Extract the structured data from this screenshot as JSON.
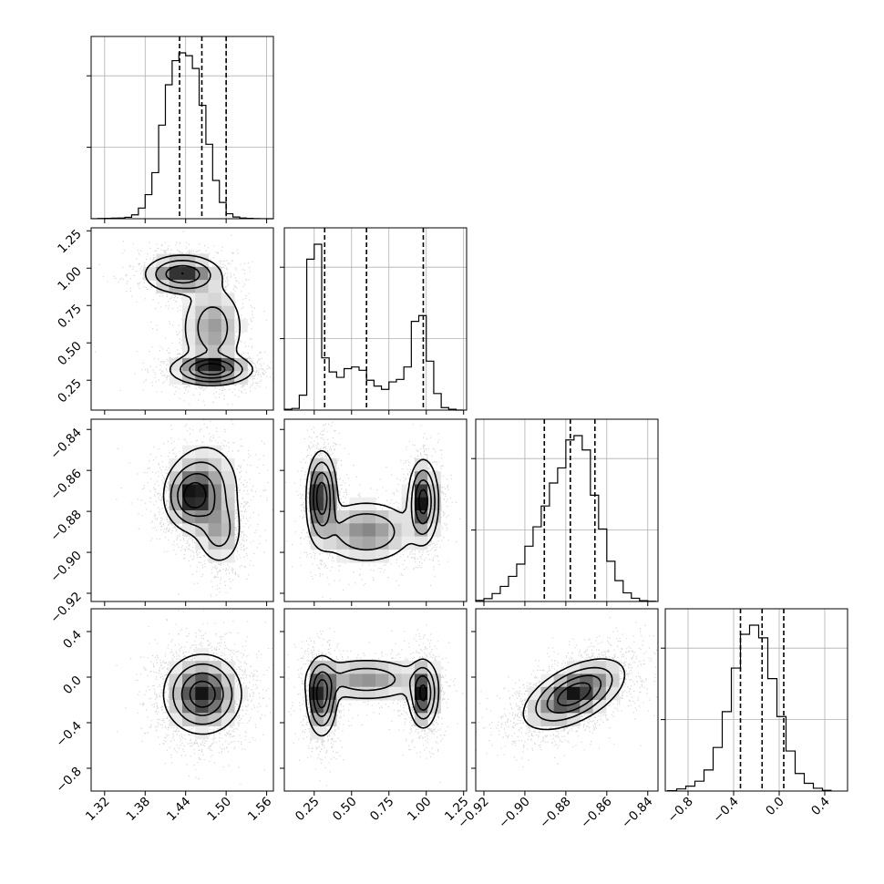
{
  "chart_data": {
    "type": "corner",
    "grid": true,
    "quantile_lines": "dashed",
    "parameters": [
      {
        "range": [
          1.3,
          1.57
        ],
        "ticks": [
          "1.32",
          "1.38",
          "1.44",
          "1.50",
          "1.56"
        ],
        "tick_values": [
          1.32,
          1.38,
          1.44,
          1.5,
          1.56
        ],
        "quantiles": [
          1.431,
          1.464,
          1.5
        ],
        "hist_x": [
          1.3,
          1.31,
          1.32,
          1.33,
          1.34,
          1.35,
          1.36,
          1.37,
          1.38,
          1.39,
          1.4,
          1.41,
          1.42,
          1.43,
          1.44,
          1.45,
          1.46,
          1.47,
          1.48,
          1.49,
          1.5,
          1.51,
          1.52,
          1.53,
          1.54,
          1.55,
          1.56,
          1.57
        ],
        "hist_counts": [
          1,
          3,
          5,
          8,
          10,
          20,
          55,
          150,
          340,
          650,
          1320,
          1890,
          2230,
          2340,
          2300,
          2120,
          1600,
          1050,
          540,
          230,
          70,
          24,
          10,
          5,
          2,
          1,
          0
        ]
      },
      {
        "range": [
          0.05,
          1.27
        ],
        "ticks": [
          "0.25",
          "0.50",
          "0.75",
          "1.00",
          "1.25"
        ],
        "tick_values": [
          0.25,
          0.5,
          0.75,
          1.0,
          1.25
        ],
        "quantiles": [
          0.32,
          0.6,
          0.98
        ],
        "hist_x": [
          0.05,
          0.1,
          0.15,
          0.2,
          0.25,
          0.3,
          0.35,
          0.4,
          0.45,
          0.5,
          0.55,
          0.6,
          0.65,
          0.7,
          0.75,
          0.8,
          0.85,
          0.9,
          0.95,
          1.0,
          1.05,
          1.1,
          1.15,
          1.2,
          1.25
        ],
        "hist_counts": [
          10,
          20,
          180,
          1820,
          2000,
          630,
          460,
          395,
          500,
          520,
          480,
          360,
          290,
          250,
          340,
          370,
          520,
          1070,
          1140,
          590,
          200,
          30,
          10,
          0
        ]
      },
      {
        "range": [
          -0.924,
          -0.835
        ],
        "ticks": [
          "−0.92",
          "−0.90",
          "−0.88",
          "−0.86",
          "−0.84"
        ],
        "tick_values": [
          -0.92,
          -0.9,
          -0.88,
          -0.86,
          -0.84
        ],
        "quantiles": [
          -0.8905,
          -0.8778,
          -0.8658
        ],
        "hist_x": [
          -0.924,
          -0.92,
          -0.916,
          -0.912,
          -0.908,
          -0.904,
          -0.9,
          -0.896,
          -0.892,
          -0.888,
          -0.884,
          -0.88,
          -0.876,
          -0.872,
          -0.868,
          -0.864,
          -0.86,
          -0.856,
          -0.852,
          -0.848,
          -0.844,
          -0.84,
          -0.836
        ],
        "hist_counts": [
          15,
          40,
          110,
          210,
          350,
          520,
          770,
          1040,
          1330,
          1650,
          1860,
          2250,
          2310,
          2110,
          1480,
          1010,
          560,
          290,
          120,
          45,
          12,
          4
        ]
      },
      {
        "range": [
          -1.0,
          0.6
        ],
        "ticks": [
          "−0.8",
          "−0.4",
          "0.0",
          "0.4"
        ],
        "tick_values": [
          -0.8,
          -0.4,
          0.0,
          0.4
        ],
        "quantiles": [
          -0.34,
          -0.15,
          0.04
        ],
        "hist_x": [
          -0.98,
          -0.9,
          -0.82,
          -0.74,
          -0.66,
          -0.58,
          -0.5,
          -0.42,
          -0.34,
          -0.26,
          -0.18,
          -0.1,
          -0.02,
          0.06,
          0.14,
          0.22,
          0.3,
          0.38,
          0.46
        ],
        "hist_counts": [
          5,
          30,
          70,
          140,
          300,
          620,
          1130,
          1750,
          2230,
          2360,
          2180,
          1600,
          1060,
          570,
          250,
          110,
          40,
          10
        ]
      }
    ],
    "joint_modes": {
      "1_0": [
        {
          "x": 1.435,
          "y": 0.96,
          "sx": 0.028,
          "sy": 0.065,
          "w": 1.0
        },
        {
          "x": 1.478,
          "y": 0.32,
          "sx": 0.03,
          "sy": 0.05,
          "w": 1.15
        },
        {
          "x": 1.48,
          "y": 0.6,
          "sx": 0.025,
          "sy": 0.16,
          "w": 0.55
        }
      ],
      "2_0": [
        {
          "x": 1.448,
          "y": -0.873,
          "sx": 0.02,
          "sy": 0.008,
          "w": 1.0
        },
        {
          "x": 1.49,
          "y": -0.89,
          "sx": 0.018,
          "sy": 0.009,
          "w": 0.55
        },
        {
          "x": 1.47,
          "y": -0.868,
          "sx": 0.028,
          "sy": 0.012,
          "w": 0.6
        }
      ],
      "2_1": [
        {
          "x": 0.3,
          "y": -0.873,
          "sx": 0.05,
          "sy": 0.011,
          "w": 1.0
        },
        {
          "x": 0.98,
          "y": -0.875,
          "sx": 0.05,
          "sy": 0.01,
          "w": 0.95
        },
        {
          "x": 0.6,
          "y": -0.89,
          "sx": 0.17,
          "sy": 0.008,
          "w": 0.55
        }
      ],
      "3_0": [
        {
          "x": 1.465,
          "y": -0.15,
          "sx": 0.028,
          "sy": 0.17,
          "w": 1.0
        }
      ],
      "3_1": [
        {
          "x": 0.3,
          "y": -0.17,
          "sx": 0.05,
          "sy": 0.17,
          "w": 1.0
        },
        {
          "x": 0.98,
          "y": -0.15,
          "sx": 0.05,
          "sy": 0.15,
          "w": 0.9
        },
        {
          "x": 0.6,
          "y": -0.02,
          "sx": 0.2,
          "sy": 0.1,
          "w": 0.5
        }
      ],
      "3_2": [
        {
          "x": -0.876,
          "y": -0.15,
          "sx": 0.012,
          "sy": 0.15,
          "w": 1.0,
          "rho": 0.55
        }
      ]
    }
  },
  "colors": {
    "ink": "#000000",
    "grid": "#b0b0b0",
    "background": "#ffffff"
  }
}
